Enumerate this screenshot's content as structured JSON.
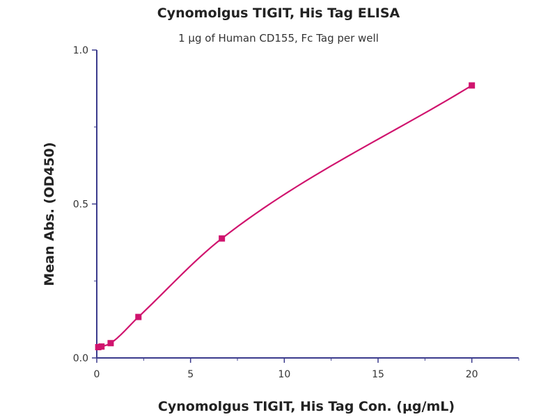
{
  "chart_data": {
    "type": "scatter",
    "title": "Cynomolgus TIGIT, His Tag ELISA",
    "subtitle": "1 μg of Human CD155, Fc Tag per well",
    "xlabel": "Cynomolgus TIGIT, His Tag Con. (μg/mL)",
    "ylabel": "Mean Abs. (OD450)",
    "xlim": [
      0,
      22.5
    ],
    "ylim": [
      0,
      1.0
    ],
    "x_ticks": [
      0,
      5,
      10,
      15,
      20
    ],
    "y_ticks": [
      0.0,
      0.5,
      1.0
    ],
    "x_tick_labels": [
      "0",
      "5",
      "10",
      "15",
      "20"
    ],
    "y_tick_labels": [
      "0.0",
      "0.5",
      "1.0"
    ],
    "grid": false,
    "series": [
      {
        "x": [
          0.08,
          0.25,
          0.74,
          2.22,
          6.67,
          20
        ],
        "y": [
          0.035,
          0.037,
          0.048,
          0.133,
          0.388,
          0.885
        ],
        "color": "#d0146e",
        "marker": "square",
        "fit_curve": "smooth"
      }
    ],
    "axis_color": "#3a3a8c"
  }
}
